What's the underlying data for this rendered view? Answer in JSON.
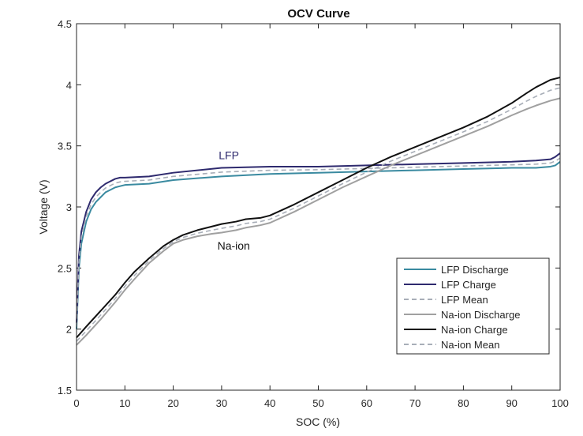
{
  "chart_data": {
    "type": "line",
    "title": "OCV Curve",
    "xlabel": "SOC (%)",
    "ylabel": "Voltage (V)",
    "xlim": [
      0,
      100
    ],
    "ylim": [
      1.5,
      4.5
    ],
    "xticks": [
      0,
      10,
      20,
      30,
      40,
      50,
      60,
      70,
      80,
      90,
      100
    ],
    "yticks": [
      1.5,
      2,
      2.5,
      3,
      3.5,
      4,
      4.5
    ],
    "legend_position": "bottom-right",
    "annotations": [
      {
        "text": "LFP",
        "x": 31.5,
        "y": 3.39,
        "color": "#2e2a6e"
      },
      {
        "text": "Na-ion",
        "x": 32.5,
        "y": 2.65,
        "color": "#111111"
      }
    ],
    "series": [
      {
        "name": "LFP Discharge",
        "color": "#3a8aa0",
        "dash": "solid",
        "points": [
          [
            0,
            2.0
          ],
          [
            0.5,
            2.5
          ],
          [
            1,
            2.7
          ],
          [
            2,
            2.88
          ],
          [
            3,
            2.98
          ],
          [
            4,
            3.04
          ],
          [
            5,
            3.08
          ],
          [
            6,
            3.12
          ],
          [
            7,
            3.14
          ],
          [
            8,
            3.16
          ],
          [
            9,
            3.17
          ],
          [
            10,
            3.18
          ],
          [
            15,
            3.19
          ],
          [
            20,
            3.22
          ],
          [
            30,
            3.25
          ],
          [
            40,
            3.27
          ],
          [
            50,
            3.28
          ],
          [
            60,
            3.29
          ],
          [
            70,
            3.3
          ],
          [
            80,
            3.31
          ],
          [
            90,
            3.32
          ],
          [
            95,
            3.32
          ],
          [
            98,
            3.33
          ],
          [
            99,
            3.34
          ],
          [
            100,
            3.37
          ]
        ]
      },
      {
        "name": "LFP Charge",
        "color": "#2e2a6e",
        "dash": "solid",
        "points": [
          [
            0,
            2.05
          ],
          [
            0.5,
            2.6
          ],
          [
            1,
            2.8
          ],
          [
            2,
            2.96
          ],
          [
            3,
            3.06
          ],
          [
            4,
            3.12
          ],
          [
            5,
            3.16
          ],
          [
            6,
            3.19
          ],
          [
            7,
            3.21
          ],
          [
            8,
            3.23
          ],
          [
            9,
            3.24
          ],
          [
            10,
            3.24
          ],
          [
            15,
            3.25
          ],
          [
            20,
            3.28
          ],
          [
            30,
            3.32
          ],
          [
            40,
            3.33
          ],
          [
            50,
            3.33
          ],
          [
            60,
            3.34
          ],
          [
            70,
            3.35
          ],
          [
            80,
            3.36
          ],
          [
            90,
            3.37
          ],
          [
            95,
            3.38
          ],
          [
            98,
            3.39
          ],
          [
            99,
            3.41
          ],
          [
            100,
            3.44
          ]
        ]
      },
      {
        "name": "LFP Mean",
        "color": "#a8aeb8",
        "dash": "dashed",
        "points": [
          [
            0,
            2.02
          ],
          [
            0.5,
            2.55
          ],
          [
            1,
            2.75
          ],
          [
            2,
            2.92
          ],
          [
            3,
            3.02
          ],
          [
            4,
            3.08
          ],
          [
            5,
            3.12
          ],
          [
            6,
            3.155
          ],
          [
            7,
            3.175
          ],
          [
            8,
            3.195
          ],
          [
            9,
            3.205
          ],
          [
            10,
            3.21
          ],
          [
            15,
            3.22
          ],
          [
            20,
            3.25
          ],
          [
            30,
            3.285
          ],
          [
            40,
            3.3
          ],
          [
            50,
            3.305
          ],
          [
            60,
            3.315
          ],
          [
            70,
            3.325
          ],
          [
            80,
            3.335
          ],
          [
            90,
            3.345
          ],
          [
            95,
            3.35
          ],
          [
            98,
            3.36
          ],
          [
            99,
            3.375
          ],
          [
            100,
            3.4
          ]
        ]
      },
      {
        "name": "Na-ion Discharge",
        "color": "#a0a0a0",
        "dash": "solid",
        "points": [
          [
            0,
            1.87
          ],
          [
            2,
            1.95
          ],
          [
            5,
            2.08
          ],
          [
            8,
            2.22
          ],
          [
            10,
            2.32
          ],
          [
            12,
            2.41
          ],
          [
            15,
            2.54
          ],
          [
            18,
            2.64
          ],
          [
            20,
            2.7
          ],
          [
            22,
            2.73
          ],
          [
            25,
            2.76
          ],
          [
            28,
            2.78
          ],
          [
            30,
            2.79
          ],
          [
            33,
            2.81
          ],
          [
            35,
            2.83
          ],
          [
            38,
            2.85
          ],
          [
            40,
            2.87
          ],
          [
            45,
            2.96
          ],
          [
            50,
            3.06
          ],
          [
            55,
            3.16
          ],
          [
            60,
            3.25
          ],
          [
            65,
            3.34
          ],
          [
            70,
            3.42
          ],
          [
            75,
            3.5
          ],
          [
            80,
            3.58
          ],
          [
            85,
            3.66
          ],
          [
            90,
            3.75
          ],
          [
            93,
            3.8
          ],
          [
            95,
            3.83
          ],
          [
            98,
            3.87
          ],
          [
            100,
            3.89
          ]
        ]
      },
      {
        "name": "Na-ion Charge",
        "color": "#111111",
        "dash": "solid",
        "points": [
          [
            0,
            1.93
          ],
          [
            2,
            2.02
          ],
          [
            5,
            2.15
          ],
          [
            8,
            2.28
          ],
          [
            10,
            2.38
          ],
          [
            12,
            2.47
          ],
          [
            15,
            2.58
          ],
          [
            18,
            2.68
          ],
          [
            20,
            2.73
          ],
          [
            22,
            2.77
          ],
          [
            25,
            2.81
          ],
          [
            28,
            2.84
          ],
          [
            30,
            2.86
          ],
          [
            33,
            2.88
          ],
          [
            35,
            2.9
          ],
          [
            38,
            2.91
          ],
          [
            40,
            2.93
          ],
          [
            45,
            3.02
          ],
          [
            50,
            3.12
          ],
          [
            55,
            3.22
          ],
          [
            60,
            3.32
          ],
          [
            65,
            3.41
          ],
          [
            70,
            3.49
          ],
          [
            75,
            3.57
          ],
          [
            80,
            3.65
          ],
          [
            85,
            3.74
          ],
          [
            90,
            3.85
          ],
          [
            93,
            3.93
          ],
          [
            95,
            3.98
          ],
          [
            98,
            4.04
          ],
          [
            100,
            4.06
          ]
        ]
      },
      {
        "name": "Na-ion Mean",
        "color": "#a8aeb8",
        "dash": "dashed",
        "points": [
          [
            0,
            1.9
          ],
          [
            2,
            1.985
          ],
          [
            5,
            2.115
          ],
          [
            8,
            2.25
          ],
          [
            10,
            2.35
          ],
          [
            12,
            2.44
          ],
          [
            15,
            2.56
          ],
          [
            18,
            2.66
          ],
          [
            20,
            2.715
          ],
          [
            22,
            2.75
          ],
          [
            25,
            2.785
          ],
          [
            28,
            2.81
          ],
          [
            30,
            2.825
          ],
          [
            33,
            2.845
          ],
          [
            35,
            2.865
          ],
          [
            38,
            2.88
          ],
          [
            40,
            2.9
          ],
          [
            45,
            2.99
          ],
          [
            50,
            3.09
          ],
          [
            55,
            3.19
          ],
          [
            60,
            3.285
          ],
          [
            65,
            3.375
          ],
          [
            70,
            3.455
          ],
          [
            75,
            3.535
          ],
          [
            80,
            3.615
          ],
          [
            85,
            3.7
          ],
          [
            90,
            3.8
          ],
          [
            93,
            3.865
          ],
          [
            95,
            3.905
          ],
          [
            98,
            3.955
          ],
          [
            100,
            3.975
          ]
        ]
      }
    ]
  }
}
